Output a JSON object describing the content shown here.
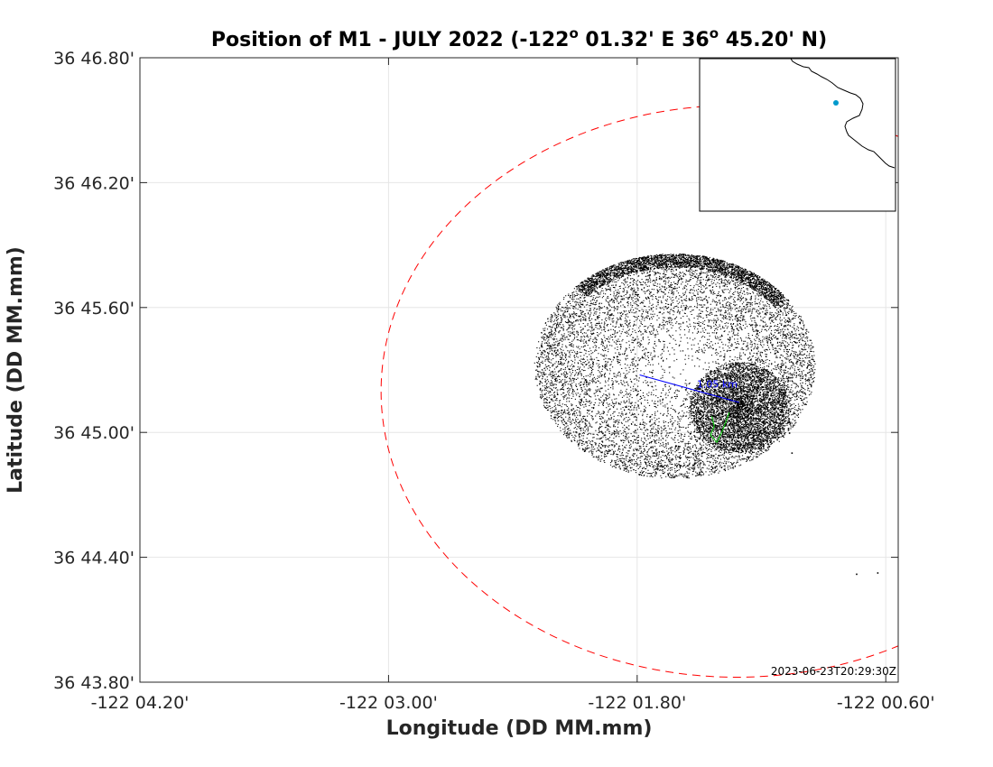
{
  "chart_data": {
    "type": "scatter",
    "title_parts": {
      "prefix": "Position of M1 - JULY 2022 (-122",
      "deg1": "o",
      "middle": " 01.32' E  36",
      "deg2": "o",
      "suffix": " 45.20' N)"
    },
    "xlabel": "Longitude (DD MM.mm)",
    "ylabel": "Latitude (DD MM.mm)",
    "xlim": [
      -122.07,
      -122.009
    ],
    "ylim": [
      36.73,
      36.78
    ],
    "xticks": [
      {
        "value": -122.07,
        "label": "-122 04.20'"
      },
      {
        "value": -122.05,
        "label": "-122 03.00'"
      },
      {
        "value": -122.03,
        "label": "-122 01.80'"
      },
      {
        "value": -122.01,
        "label": "-122 00.60'"
      }
    ],
    "yticks": [
      {
        "value": 36.73,
        "label": "36 43.80'"
      },
      {
        "value": 36.74,
        "label": "36 44.40'"
      },
      {
        "value": 36.75,
        "label": "36 45.00'"
      },
      {
        "value": 36.76,
        "label": "36 45.60'"
      },
      {
        "value": 36.77,
        "label": "36 46.20'"
      },
      {
        "value": 36.78,
        "label": "36 46.80'"
      }
    ],
    "grid": true,
    "nominal_position": {
      "lon": -122.022,
      "lat": 36.7533
    },
    "watch_circle": {
      "center_lon": -122.022,
      "center_lat": 36.7533,
      "radius_lat": 0.0229,
      "radius_lon": 0.0286,
      "color": "#ff0000",
      "style": "dashed"
    },
    "position_cloud": {
      "center_lon": -122.027,
      "center_lat": 36.7553,
      "radius_lon": 0.0113,
      "radius_lat": 0.009,
      "dense_edge_lon": -122.0218,
      "dense_edge_lat": 36.752,
      "color": "#000000"
    },
    "recent_track": {
      "color": "#00cc00",
      "points": [
        {
          "lon": -122.024,
          "lat": 36.7513
        },
        {
          "lon": -122.0238,
          "lat": 36.7505
        },
        {
          "lon": -122.0241,
          "lat": 36.7498
        },
        {
          "lon": -122.0236,
          "lat": 36.7492
        },
        {
          "lon": -122.0232,
          "lat": 36.75
        },
        {
          "lon": -122.0228,
          "lat": 36.751
        },
        {
          "lon": -122.0226,
          "lat": 36.7516
        }
      ]
    },
    "offset_vector": {
      "from_lon": -122.0298,
      "from_lat": 36.7546,
      "to_lon": -122.0218,
      "to_lat": 36.7524,
      "color": "#0000ff",
      "label": "1.05 km",
      "label_lon": -122.0252,
      "label_lat": 36.7536
    },
    "outliers": [
      {
        "lon": -122.0178,
        "lat": 36.75
      },
      {
        "lon": -122.0176,
        "lat": 36.7484
      },
      {
        "lon": -122.0235,
        "lat": 36.7482
      },
      {
        "lon": -122.0124,
        "lat": 36.7387
      },
      {
        "lon": -122.0107,
        "lat": 36.7388
      }
    ],
    "inset_map": {
      "description": "coastline locator",
      "marker_color": "#0099cc"
    },
    "timestamp": "2023-06-23T20:29:30Z"
  }
}
